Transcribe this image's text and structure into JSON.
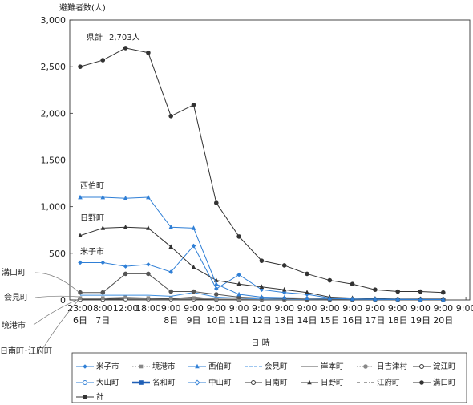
{
  "chart_data": {
    "type": "line",
    "ylabel": "避難者数(人)",
    "xlabel": "日 時",
    "ylim": [
      0,
      3000
    ],
    "yticks": [
      "0",
      "500",
      "1,000",
      "1,500",
      "2,000",
      "2,500",
      "3,000"
    ],
    "x_times": [
      "23:00",
      "8:00",
      "12:00",
      "18:00",
      "9:00",
      "9:00",
      "9:00",
      "9:00",
      "9:00",
      "9:00",
      "9:00",
      "9:00",
      "9:00",
      "9:00",
      "9:00",
      "9:00",
      "9:00",
      "9:00"
    ],
    "x_days": [
      "6日",
      "7日",
      "",
      "",
      "8日",
      "9日",
      "10日",
      "11日",
      "12日",
      "13日",
      "14日",
      "15日",
      "16日",
      "17日",
      "18日",
      "19日",
      "20日",
      ""
    ],
    "annotations": {
      "total": "県計",
      "total_value": "2,703人",
      "saihaku": "西伯町",
      "hino": "日野町",
      "yonago": "米子市",
      "mizoguchi": "溝口町",
      "aimi": "会見町",
      "sakaiminato": "境港市",
      "nichinan_kofu": "日南町･江府町"
    },
    "series": [
      {
        "name": "計",
        "color": "#333333",
        "marker": "circle-filled",
        "values": [
          2500,
          2570,
          2700,
          2650,
          1970,
          2090,
          1040,
          680,
          420,
          370,
          280,
          210,
          170,
          110,
          90,
          90,
          80,
          null
        ]
      },
      {
        "name": "西伯町",
        "color": "#2f7fd6",
        "marker": "triangle",
        "values": [
          1100,
          1100,
          1090,
          1100,
          780,
          770,
          170,
          60,
          30,
          25,
          20,
          15,
          10,
          10,
          8,
          5,
          5,
          null
        ]
      },
      {
        "name": "日野町",
        "color": "#333333",
        "marker": "triangle",
        "values": [
          690,
          770,
          780,
          770,
          570,
          350,
          210,
          170,
          140,
          110,
          80,
          30,
          20,
          15,
          10,
          10,
          10,
          null
        ]
      },
      {
        "name": "米子市",
        "color": "#2f7fd6",
        "marker": "diamond",
        "values": [
          400,
          400,
          360,
          380,
          300,
          580,
          120,
          270,
          110,
          80,
          60,
          20,
          10,
          5,
          5,
          5,
          5,
          null
        ]
      },
      {
        "name": "溝口町",
        "color": "#555555",
        "marker": "circle-filled",
        "values": [
          80,
          80,
          280,
          280,
          90,
          90,
          60,
          30,
          20,
          15,
          10,
          5,
          5,
          5,
          5,
          5,
          5,
          null
        ]
      },
      {
        "name": "会見町",
        "color": "#3f8fe0",
        "marker": "none",
        "values": [
          50,
          50,
          50,
          50,
          40,
          80,
          30,
          20,
          10,
          10,
          5,
          5,
          5,
          5,
          5,
          5,
          5,
          null
        ]
      },
      {
        "name": "境港市",
        "color": "#888888",
        "marker": "square",
        "values": [
          20,
          20,
          30,
          20,
          20,
          20,
          10,
          10,
          5,
          5,
          5,
          5,
          5,
          5,
          5,
          5,
          5,
          null
        ]
      },
      {
        "name": "江府町",
        "color": "#444444",
        "marker": "none",
        "values": [
          10,
          10,
          20,
          20,
          15,
          30,
          10,
          5,
          5,
          5,
          5,
          5,
          5,
          5,
          5,
          5,
          5,
          null
        ]
      },
      {
        "name": "日南町",
        "color": "#444444",
        "marker": "circle-open",
        "values": [
          5,
          5,
          10,
          10,
          10,
          10,
          5,
          5,
          5,
          5,
          5,
          5,
          5,
          5,
          5,
          5,
          5,
          null
        ]
      }
    ],
    "legend": [
      {
        "label": "米子市",
        "color": "#2f7fd6",
        "marker": "diamond-filled",
        "dash": "solid"
      },
      {
        "label": "境港市",
        "color": "#888888",
        "marker": "square",
        "dash": "dotted"
      },
      {
        "label": "西伯町",
        "color": "#2f7fd6",
        "marker": "triangle",
        "dash": "solid"
      },
      {
        "label": "会見町",
        "color": "#3f8fe0",
        "marker": "none",
        "dash": "dashed"
      },
      {
        "label": "岸本町",
        "color": "#555555",
        "marker": "none",
        "dash": "solid"
      },
      {
        "label": "日吉津村",
        "color": "#888888",
        "marker": "circle-filled",
        "dash": "dotted"
      },
      {
        "label": "淀江町",
        "color": "#333333",
        "marker": "circle-open",
        "dash": "solid"
      },
      {
        "label": "大山町",
        "color": "#2f7fd6",
        "marker": "circle-open",
        "dash": "solid"
      },
      {
        "label": "名和町",
        "color": "#1f5fb6",
        "marker": "square-filled",
        "dash": "thick"
      },
      {
        "label": "中山町",
        "color": "#2f7fd6",
        "marker": "diamond-open",
        "dash": "solid"
      },
      {
        "label": "日南町",
        "color": "#333333",
        "marker": "circle-open",
        "dash": "solid"
      },
      {
        "label": "日野町",
        "color": "#333333",
        "marker": "triangle",
        "dash": "solid"
      },
      {
        "label": "江府町",
        "color": "#444444",
        "marker": "none",
        "dash": "dashdot"
      },
      {
        "label": "溝口町",
        "color": "#333333",
        "marker": "circle-filled",
        "dash": "solid"
      },
      {
        "label": "計",
        "color": "#333333",
        "marker": "circle-filled",
        "dash": "solid"
      }
    ]
  }
}
